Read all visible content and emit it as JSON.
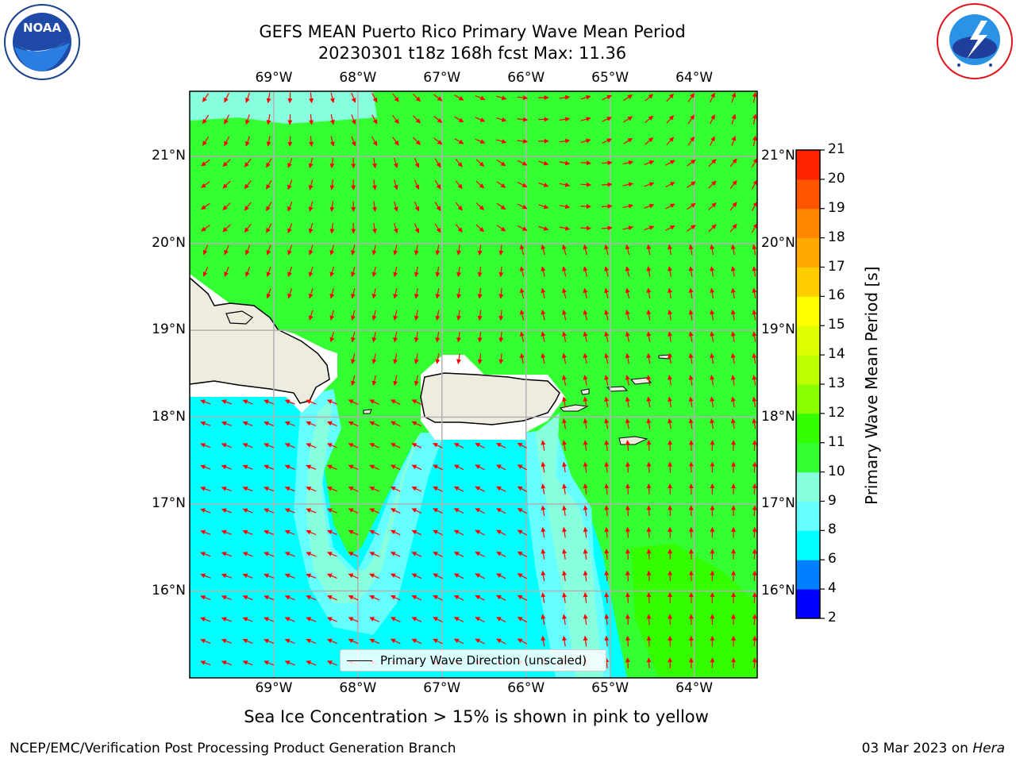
{
  "header": {
    "title_line1": "GEFS MEAN Puerto Rico Primary Wave Mean Period",
    "title_line2": "20230301 t18z 168h fcst   Max: 11.36"
  },
  "logos": {
    "left": {
      "name": "noaa-logo",
      "text": "NOAA",
      "ring_text": "NATIONAL OCEANIC AND ATMOSPHERIC ADMINISTRATION · U.S. DEPARTMENT OF COMMERCE"
    },
    "right": {
      "name": "nws-logo",
      "ring_text": "NATIONAL WEATHER SERVICE"
    }
  },
  "map": {
    "lon_labels": [
      "69°W",
      "68°W",
      "67°W",
      "66°W",
      "65°W",
      "64°W"
    ],
    "lat_labels": [
      "21°N",
      "20°N",
      "19°N",
      "18°N",
      "17°N",
      "16°N"
    ],
    "lon_values": [
      -69,
      -68,
      -67,
      -66,
      -65,
      -64
    ],
    "lat_values": [
      21,
      20,
      19,
      18,
      17,
      16
    ],
    "lon_range": [
      -70.0,
      -63.25
    ],
    "lat_range": [
      15.0,
      21.75
    ],
    "legend_label": "Primary Wave Direction (unscaled)",
    "arrow_color": "#ff0000",
    "land_color": "#eeecdf",
    "grid_color": "#b0b0b0"
  },
  "colorbar": {
    "label": "Primary Wave Mean Period [s]",
    "ticks": [
      "2",
      "4",
      "6",
      "8",
      "9",
      "10",
      "11",
      "12",
      "13",
      "14",
      "15",
      "16",
      "17",
      "18",
      "19",
      "20",
      "21"
    ],
    "colors": [
      "#0000ff",
      "#0080ff",
      "#00ffff",
      "#66ffff",
      "#88ffdd",
      "#33ff33",
      "#33ff00",
      "#88ff00",
      "#bbff00",
      "#ddff00",
      "#ffff00",
      "#ffcc00",
      "#ffaa00",
      "#ff8800",
      "#ff5500",
      "#ff2200"
    ]
  },
  "footer": {
    "note": "Sea Ice Concentration > 15% is shown in pink to yellow",
    "left": "NCEP/EMC/Verification Post Processing Product Generation Branch",
    "right_date": "03 Mar 2023 on ",
    "right_host": "Hera"
  }
}
